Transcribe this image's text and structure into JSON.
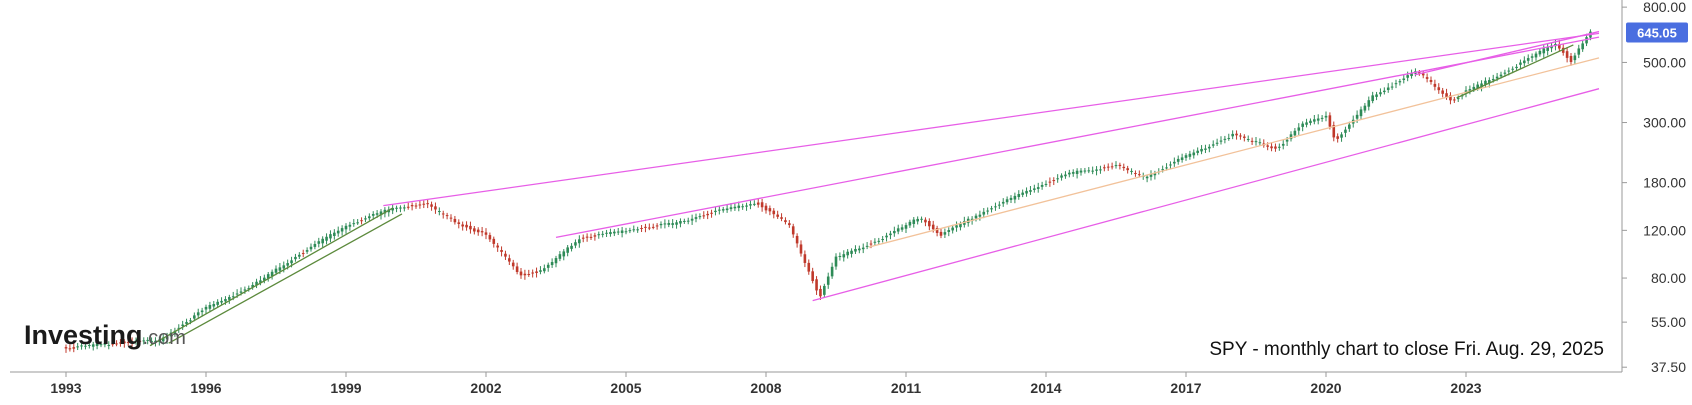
{
  "chart_data": {
    "type": "candlestick",
    "title": "SPY - monthly chart to close Fri. Aug. 29, 2025",
    "brand": {
      "word": "Investing",
      "suffix": ".com"
    },
    "x_axis": {
      "ticks": [
        "1993",
        "1996",
        "1999",
        "2002",
        "2005",
        "2008",
        "2011",
        "2014",
        "2017",
        "2020",
        "2023"
      ],
      "range": [
        1991.8,
        2026.3
      ]
    },
    "y_axis": {
      "scale": "log",
      "side": "right",
      "ticks": [
        "800.00",
        "500.00",
        "300.00",
        "180.00",
        "120.00",
        "80.00",
        "55.00",
        "37.50"
      ],
      "range": [
        36,
        850
      ]
    },
    "last_price": {
      "label": "645.05",
      "value": 645.05,
      "color": "#4a6ee0"
    },
    "series": [
      {
        "values": [
          [
            1993.0,
            44
          ],
          [
            1994.0,
            46
          ],
          [
            1995.0,
            47
          ],
          [
            1996.0,
            62
          ],
          [
            1997.0,
            75
          ],
          [
            1998.0,
            98
          ],
          [
            1999.0,
            125
          ],
          [
            2000.0,
            145
          ],
          [
            2000.7,
            150
          ],
          [
            2001.5,
            125
          ],
          [
            2002.0,
            115
          ],
          [
            2002.75,
            82
          ],
          [
            2003.2,
            85
          ],
          [
            2004.0,
            112
          ],
          [
            2005.0,
            120
          ],
          [
            2006.0,
            127
          ],
          [
            2007.0,
            142
          ],
          [
            2007.8,
            152
          ],
          [
            2008.5,
            125
          ],
          [
            2009.15,
            68
          ],
          [
            2009.5,
            95
          ],
          [
            2010.5,
            112
          ],
          [
            2011.3,
            134
          ],
          [
            2011.75,
            115
          ],
          [
            2012.5,
            136
          ],
          [
            2013.5,
            165
          ],
          [
            2014.5,
            195
          ],
          [
            2015.5,
            208
          ],
          [
            2016.1,
            188
          ],
          [
            2017.0,
            225
          ],
          [
            2018.0,
            270
          ],
          [
            2018.95,
            240
          ],
          [
            2019.5,
            295
          ],
          [
            2020.0,
            320
          ],
          [
            2020.2,
            255
          ],
          [
            2021.0,
            375
          ],
          [
            2021.95,
            465
          ],
          [
            2022.7,
            360
          ],
          [
            2023.0,
            390
          ],
          [
            2024.0,
            475
          ],
          [
            2024.9,
            590
          ],
          [
            2025.25,
            505
          ],
          [
            2025.66,
            645
          ]
        ]
      }
    ],
    "trendlines": [
      {
        "color": "#e75ee7",
        "points": [
          [
            1999.8,
            148
          ],
          [
            2025.85,
            640
          ]
        ]
      },
      {
        "color": "#e75ee7",
        "points": [
          [
            2003.5,
            113
          ],
          [
            2025.85,
            620
          ]
        ]
      },
      {
        "color": "#e75ee7",
        "points": [
          [
            2009.0,
            66
          ],
          [
            2025.85,
            400
          ]
        ]
      },
      {
        "color": "#e75ee7",
        "points": [
          [
            2021.9,
            450
          ],
          [
            2025.85,
            650
          ]
        ]
      },
      {
        "color": "#f2c29a",
        "points": [
          [
            2010.2,
            104
          ],
          [
            2025.85,
            520
          ]
        ]
      },
      {
        "color": "#5c8a3c",
        "points": [
          [
            1994.8,
            45
          ],
          [
            2000.0,
            145
          ]
        ]
      },
      {
        "color": "#5c8a3c",
        "points": [
          [
            1995.2,
            46
          ],
          [
            2000.2,
            138
          ]
        ]
      },
      {
        "color": "#5c8a3c",
        "points": [
          [
            2022.8,
            370
          ],
          [
            2025.3,
            580
          ]
        ]
      }
    ],
    "colors": {
      "up": "#2e8b57",
      "down": "#c0392b"
    }
  }
}
